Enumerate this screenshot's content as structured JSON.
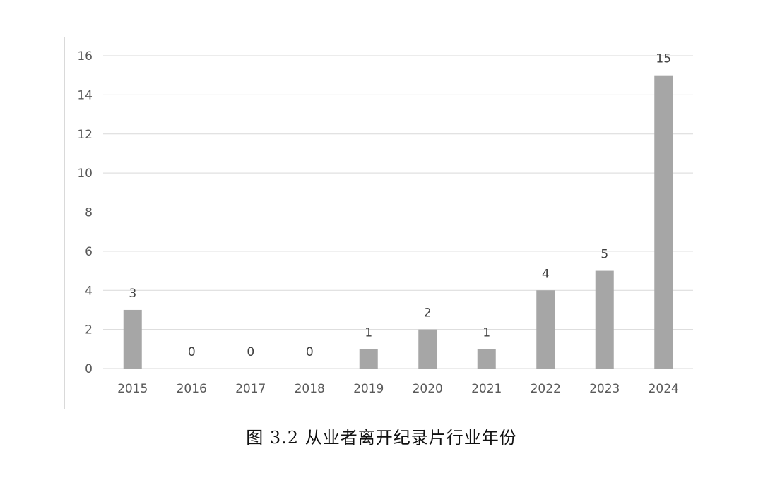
{
  "caption": "图 3.2  从业者离开纪录片行业年份",
  "chart_data": {
    "type": "bar",
    "categories": [
      "2015",
      "2016",
      "2017",
      "2018",
      "2019",
      "2020",
      "2021",
      "2022",
      "2023",
      "2024"
    ],
    "values": [
      3,
      0,
      0,
      0,
      1,
      2,
      1,
      4,
      5,
      15
    ],
    "ylim": [
      0,
      16
    ],
    "yticks": [
      0,
      2,
      4,
      6,
      8,
      10,
      12,
      14,
      16
    ],
    "grid": true,
    "legend": "none",
    "bar_color": "#a6a6a6",
    "grid_color": "#d9d9d9",
    "label_color": "#595959"
  }
}
